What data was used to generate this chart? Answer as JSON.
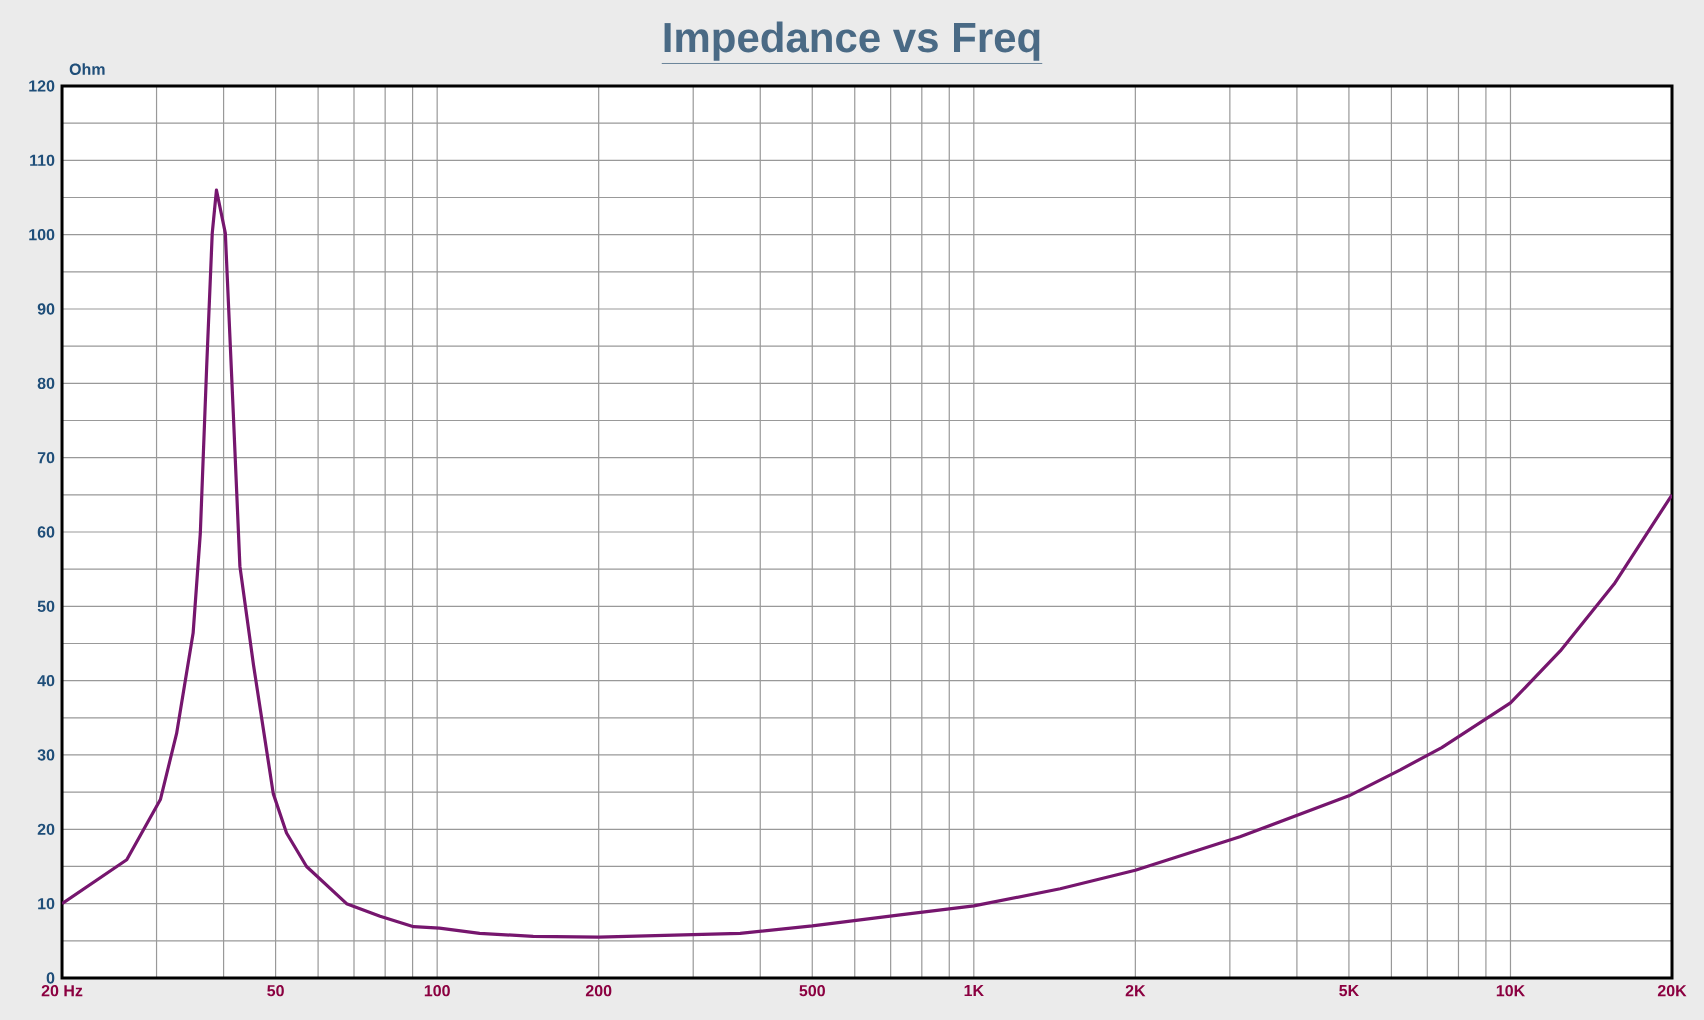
{
  "chart_data": {
    "type": "line",
    "title": "Impedance vs Freq",
    "ylabel": "Ohm",
    "log": "x",
    "grid": true,
    "x": [
      20,
      26.4,
      30.5,
      32.7,
      35.1,
      36.2,
      37.2,
      38.1,
      38.8,
      40.3,
      41.7,
      42.9,
      45.5,
      49.5,
      52.4,
      57.1,
      67.8,
      78.3,
      90.4,
      101,
      120,
      151,
      200,
      367,
      500,
      729,
      1000,
      1449,
      2000,
      3133,
      5000,
      6232,
      7447,
      10000,
      12384,
      15600,
      20000
    ],
    "series": [
      {
        "color": "#76166e",
        "values": [
          10,
          15.9,
          24,
          32.9,
          46.4,
          59.8,
          82.2,
          100.2,
          106,
          100.2,
          76,
          55.4,
          42,
          24.8,
          19.5,
          15,
          10,
          8.3,
          6.9,
          6.7,
          6,
          5.6,
          5.5,
          6,
          7,
          8.5,
          9.7,
          12,
          14.5,
          19,
          24.5,
          28,
          31,
          37,
          44,
          53,
          65
        ]
      }
    ],
    "xlim": [
      20,
      20000
    ],
    "ylim": [
      0,
      120
    ],
    "xticks": [
      {
        "value": 20,
        "label": "20  Hz"
      },
      {
        "value": 30,
        "label": null
      },
      {
        "value": 40,
        "label": null
      },
      {
        "value": 50,
        "label": "50"
      },
      {
        "value": 60,
        "label": null
      },
      {
        "value": 70,
        "label": null
      },
      {
        "value": 80,
        "label": null
      },
      {
        "value": 90,
        "label": null
      },
      {
        "value": 100,
        "label": "100"
      },
      {
        "value": 200,
        "label": "200"
      },
      {
        "value": 300,
        "label": null
      },
      {
        "value": 400,
        "label": null
      },
      {
        "value": 500,
        "label": "500"
      },
      {
        "value": 600,
        "label": null
      },
      {
        "value": 700,
        "label": null
      },
      {
        "value": 800,
        "label": null
      },
      {
        "value": 900,
        "label": null
      },
      {
        "value": 1000,
        "label": "1K"
      },
      {
        "value": 2000,
        "label": "2K"
      },
      {
        "value": 3000,
        "label": null
      },
      {
        "value": 4000,
        "label": null
      },
      {
        "value": 5000,
        "label": "5K"
      },
      {
        "value": 6000,
        "label": null
      },
      {
        "value": 7000,
        "label": null
      },
      {
        "value": 8000,
        "label": null
      },
      {
        "value": 9000,
        "label": null
      },
      {
        "value": 10000,
        "label": "10K"
      },
      {
        "value": 20000,
        "label": "20K"
      }
    ],
    "yticks": [
      0,
      {
        "value": 5,
        "label": null
      },
      10,
      {
        "value": 15,
        "label": null
      },
      20,
      {
        "value": 25,
        "label": null
      },
      30,
      {
        "value": 35,
        "label": null
      },
      40,
      {
        "value": 45,
        "label": null
      },
      50,
      {
        "value": 55,
        "label": null
      },
      60,
      {
        "value": 65,
        "label": null
      },
      70,
      {
        "value": 75,
        "label": null
      },
      80,
      {
        "value": 85,
        "label": null
      },
      90,
      {
        "value": 95,
        "label": null
      },
      100,
      {
        "value": 105,
        "label": null
      },
      110,
      {
        "value": 115,
        "label": null
      },
      120
    ]
  }
}
